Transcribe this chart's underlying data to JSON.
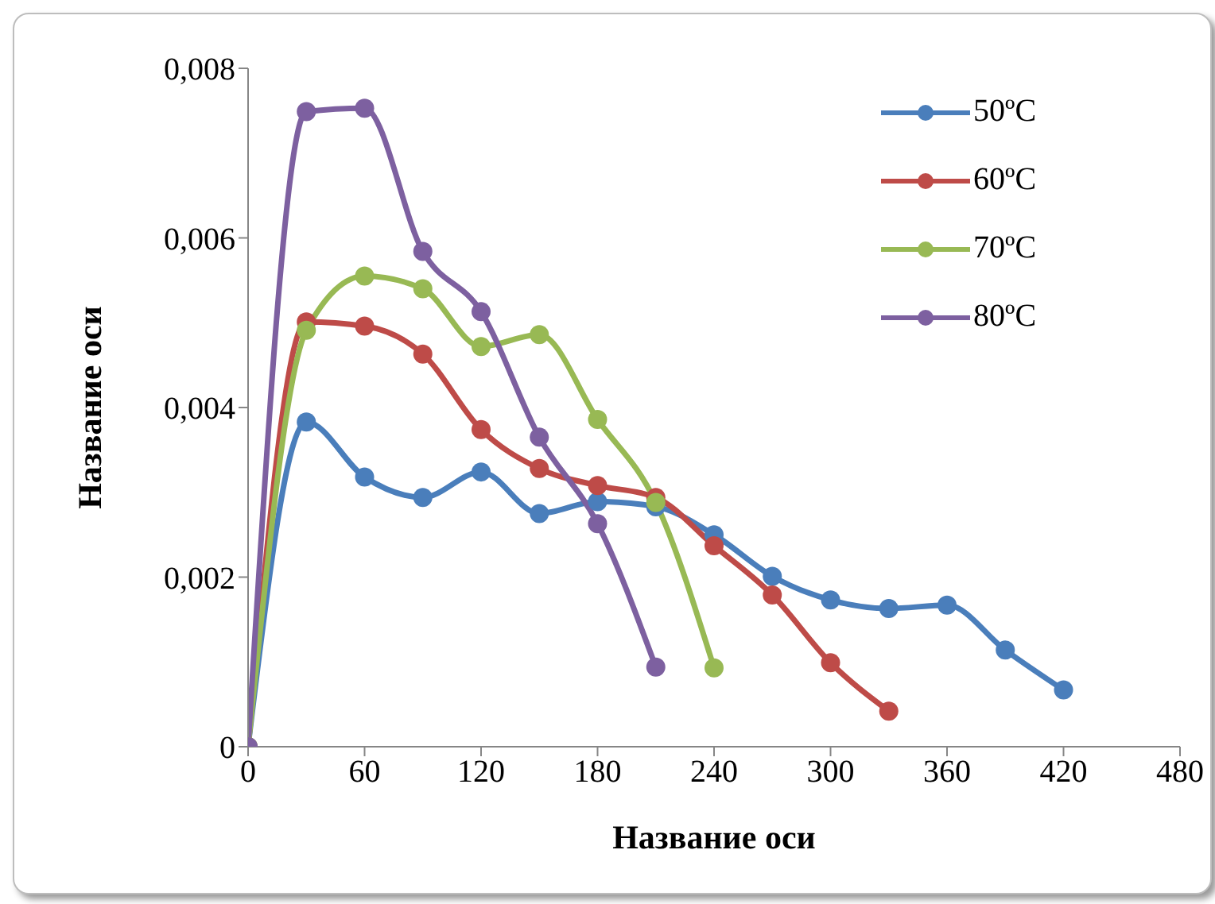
{
  "chart_data": {
    "type": "line",
    "xlabel": "Название оси",
    "ylabel": "Название оси",
    "x": [
      0,
      30,
      60,
      90,
      120,
      150,
      180,
      210,
      240,
      270,
      300,
      330,
      360,
      390,
      420
    ],
    "series": [
      {
        "name": "50ºC",
        "color": "#4a7ebb",
        "values": [
          0,
          0.00383,
          0.00318,
          0.00294,
          0.00324,
          0.00275,
          0.00289,
          0.00283,
          0.0025,
          0.00201,
          0.00173,
          0.00163,
          0.00167,
          0.00114,
          0.00067
        ]
      },
      {
        "name": "60ºC",
        "color": "#be4b48",
        "values": [
          0,
          0.00501,
          0.00496,
          0.00463,
          0.00374,
          0.00328,
          0.00308,
          0.00294,
          0.00237,
          0.00179,
          0.00099,
          0.00042,
          null,
          null,
          null
        ]
      },
      {
        "name": "70ºC",
        "color": "#98b954",
        "values": [
          0,
          0.00491,
          0.00555,
          0.0054,
          0.00472,
          0.00486,
          0.00386,
          0.00288,
          0.00093,
          null,
          null,
          null,
          null,
          null,
          null
        ]
      },
      {
        "name": "80ºC",
        "color": "#7d60a0",
        "values": [
          0,
          0.00749,
          0.00753,
          0.00584,
          0.00513,
          0.00365,
          0.00263,
          0.00094,
          null,
          null,
          null,
          null,
          null,
          null,
          null
        ]
      }
    ],
    "xlim": [
      0,
      480
    ],
    "xticks": [
      0,
      60,
      120,
      180,
      240,
      300,
      360,
      420,
      480
    ],
    "ylim": [
      0,
      0.008
    ],
    "yticks": [
      {
        "value": 0,
        "label": "0"
      },
      {
        "value": 0.002,
        "label": "0,002"
      },
      {
        "value": 0.004,
        "label": "0,004"
      },
      {
        "value": 0.006,
        "label": "0,006"
      },
      {
        "value": 0.008,
        "label": "0,008"
      }
    ],
    "grid": false,
    "legend": "top right",
    "marker": "circle",
    "line_style": "solid"
  }
}
